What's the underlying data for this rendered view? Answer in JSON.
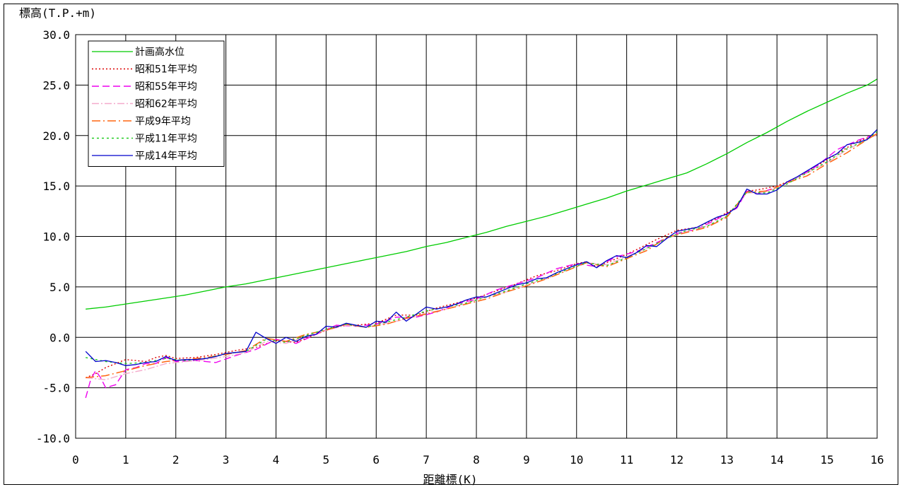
{
  "chart_data": {
    "type": "line",
    "ylabel": "標高(T.P.+m)",
    "xlabel": "距離標(K)",
    "xlim": [
      0,
      16
    ],
    "ylim": [
      -10,
      30
    ],
    "xticks": [
      "0",
      "1",
      "2",
      "3",
      "4",
      "5",
      "6",
      "7",
      "8",
      "9",
      "10",
      "11",
      "12",
      "13",
      "14",
      "15",
      "16"
    ],
    "yticks": [
      "30.0",
      "25.0",
      "20.0",
      "15.0",
      "10.0",
      "5.0",
      "0.0",
      "-5.0",
      "-10.0"
    ],
    "grid": true,
    "legend_position": "top-left",
    "series": [
      {
        "name": "計画高水位",
        "color": "#00cc00",
        "dash": "",
        "width": 1.3,
        "x": [
          0.2,
          0.6,
          1.0,
          1.4,
          1.8,
          2.2,
          2.6,
          3.0,
          3.4,
          3.8,
          4.2,
          4.6,
          5.0,
          5.4,
          5.8,
          6.2,
          6.6,
          7.0,
          7.4,
          7.8,
          8.2,
          8.6,
          9.0,
          9.4,
          9.8,
          10.2,
          10.6,
          11.0,
          11.4,
          11.8,
          12.2,
          12.6,
          13.0,
          13.4,
          13.8,
          14.2,
          14.6,
          15.0,
          15.4,
          15.8,
          16.0
        ],
        "y": [
          2.8,
          3.0,
          3.3,
          3.6,
          3.9,
          4.2,
          4.6,
          5.0,
          5.3,
          5.7,
          6.1,
          6.5,
          6.9,
          7.3,
          7.7,
          8.1,
          8.5,
          9.0,
          9.4,
          9.9,
          10.4,
          11.0,
          11.5,
          12.0,
          12.6,
          13.2,
          13.8,
          14.5,
          15.1,
          15.7,
          16.3,
          17.2,
          18.2,
          19.3,
          20.3,
          21.4,
          22.4,
          23.3,
          24.2,
          25.0,
          25.6
        ]
      },
      {
        "name": "昭和51年平均",
        "color": "#dd0000",
        "dash": "2,3",
        "width": 1.4,
        "x": [
          0.2,
          0.4,
          0.6,
          0.8,
          1.0,
          1.2,
          1.4,
          1.6,
          1.8,
          2.0,
          2.4,
          2.8,
          3.2,
          3.6,
          4.0,
          4.4,
          4.8,
          5.2,
          5.6,
          6.0,
          6.4,
          6.8,
          7.2,
          7.6,
          8.0,
          8.4,
          8.8,
          9.2,
          9.6,
          10.0,
          10.2,
          10.4,
          10.8,
          11.2,
          11.6,
          12.0,
          12.4,
          12.8,
          13.2,
          13.4,
          13.6,
          14.0,
          14.4,
          14.8,
          15.2,
          15.6,
          16.0
        ],
        "y": [
          -4.0,
          -3.6,
          -3.0,
          -2.6,
          -2.2,
          -2.3,
          -2.4,
          -2.0,
          -1.8,
          -2.1,
          -2.0,
          -1.7,
          -1.3,
          -1.0,
          -0.3,
          -0.5,
          0.3,
          1.1,
          1.2,
          1.4,
          2.2,
          2.2,
          2.9,
          3.4,
          3.9,
          4.6,
          5.3,
          6.1,
          6.6,
          7.3,
          7.5,
          7.0,
          7.8,
          8.7,
          9.7,
          10.6,
          10.9,
          11.8,
          12.9,
          14.5,
          14.6,
          15.0,
          15.8,
          17.0,
          18.2,
          19.4,
          20.1
        ]
      },
      {
        "name": "昭和55年平均",
        "color": "#ee00ee",
        "dash": "10,5",
        "width": 1.4,
        "x": [
          0.2,
          0.3,
          0.4,
          0.5,
          0.6,
          0.8,
          1.0,
          1.2,
          1.4,
          1.6,
          1.8,
          2.0,
          2.4,
          2.8,
          3.2,
          3.6,
          4.0,
          4.4,
          4.8,
          5.2,
          5.6,
          6.0,
          6.4,
          6.8,
          7.2,
          7.6,
          8.0,
          8.4,
          8.8,
          9.2,
          9.6,
          10.0,
          10.4,
          10.8,
          11.2,
          11.6,
          12.0,
          12.4,
          12.8,
          13.2,
          13.4,
          13.6,
          14.0,
          14.4,
          14.8,
          15.2,
          15.6,
          16.0
        ],
        "y": [
          -6.0,
          -4.2,
          -3.3,
          -4.0,
          -5.0,
          -4.7,
          -3.2,
          -3.0,
          -2.6,
          -2.6,
          -2.0,
          -2.4,
          -2.3,
          -2.5,
          -1.8,
          -1.2,
          -0.2,
          -0.6,
          0.3,
          1.2,
          1.1,
          1.3,
          2.0,
          2.0,
          2.5,
          3.3,
          3.8,
          4.7,
          5.3,
          5.9,
          6.8,
          7.3,
          7.0,
          8.0,
          8.5,
          9.4,
          10.3,
          10.7,
          11.7,
          12.8,
          14.5,
          14.2,
          14.9,
          15.8,
          17.0,
          18.6,
          19.5,
          20.2
        ]
      },
      {
        "name": "昭和62年平均",
        "color": "#f4aacc",
        "dash": "10,3,2,3",
        "width": 1.4,
        "x": [
          0.2,
          0.6,
          1.0,
          1.4,
          1.8,
          2.2,
          2.6,
          3.0,
          3.4,
          3.8,
          4.2,
          4.6,
          5.0,
          5.4,
          5.8,
          6.2,
          6.6,
          7.0,
          7.4,
          7.8,
          8.2,
          8.6,
          9.0,
          9.4,
          9.8,
          10.2,
          10.6,
          11.0,
          11.4,
          11.8,
          12.2,
          12.6,
          13.0,
          13.4,
          13.8,
          14.2,
          14.6,
          15.0,
          15.4,
          15.8,
          16.0
        ],
        "y": [
          -4.0,
          -4.2,
          -3.6,
          -3.2,
          -2.6,
          -2.4,
          -2.2,
          -1.9,
          -1.5,
          -0.4,
          -0.6,
          0.1,
          0.7,
          1.2,
          1.0,
          1.4,
          1.8,
          2.4,
          2.8,
          3.4,
          4.0,
          4.5,
          5.2,
          5.8,
          6.6,
          7.4,
          7.2,
          8.0,
          8.8,
          9.8,
          10.5,
          11.0,
          12.0,
          14.3,
          14.4,
          15.3,
          16.3,
          17.3,
          18.6,
          19.6,
          20.1
        ]
      },
      {
        "name": "平成9年平均",
        "color": "#ff6611",
        "dash": "12,4,2,4",
        "width": 1.5,
        "x": [
          0.2,
          0.6,
          1.0,
          1.4,
          1.8,
          2.2,
          2.6,
          3.0,
          3.4,
          3.8,
          4.2,
          4.6,
          5.0,
          5.4,
          5.8,
          6.2,
          6.6,
          7.0,
          7.4,
          7.8,
          8.2,
          8.6,
          9.0,
          9.4,
          9.8,
          10.2,
          10.6,
          11.0,
          11.4,
          11.8,
          12.2,
          12.6,
          13.0,
          13.4,
          13.8,
          14.2,
          14.6,
          15.0,
          15.4,
          15.8,
          16.0
        ],
        "y": [
          -4.0,
          -3.8,
          -3.3,
          -2.8,
          -2.4,
          -2.2,
          -2.0,
          -1.7,
          -1.3,
          -0.1,
          -0.4,
          0.3,
          0.7,
          1.3,
          1.0,
          1.3,
          1.9,
          2.3,
          2.8,
          3.3,
          3.8,
          4.5,
          5.1,
          5.8,
          6.6,
          7.4,
          7.0,
          7.8,
          8.6,
          9.9,
          10.4,
          10.9,
          11.9,
          14.4,
          14.5,
          15.3,
          16.0,
          17.2,
          18.3,
          19.6,
          20.2
        ]
      },
      {
        "name": "平成11年平均",
        "color": "#22cc22",
        "dash": "3,4",
        "width": 1.4,
        "x": [
          0.2,
          0.6,
          1.0,
          1.4,
          1.8,
          2.2,
          2.6,
          3.0,
          3.4,
          3.8,
          4.2,
          4.6,
          5.0,
          5.4,
          5.8,
          6.2,
          6.6,
          7.0,
          7.4,
          7.8,
          8.2,
          8.6,
          9.0,
          9.4,
          9.8,
          10.2,
          10.6,
          11.0,
          11.4,
          11.8,
          12.2,
          12.6,
          13.0,
          13.4,
          13.8,
          14.2,
          14.6,
          15.0,
          15.4,
          15.8,
          16.0
        ],
        "y": [
          -2.0,
          -2.4,
          -2.6,
          -2.5,
          -2.1,
          -2.3,
          -2.1,
          -1.6,
          -1.4,
          -0.2,
          -0.5,
          0.2,
          0.8,
          1.3,
          1.0,
          1.5,
          2.0,
          2.6,
          3.0,
          3.4,
          4.0,
          4.6,
          5.3,
          5.9,
          6.7,
          7.4,
          7.1,
          7.9,
          8.8,
          9.8,
          10.6,
          11.0,
          12.0,
          14.4,
          14.3,
          15.2,
          16.3,
          17.4,
          18.7,
          19.6,
          20.4
        ]
      },
      {
        "name": "平成14年平均",
        "color": "#0000cc",
        "dash": "",
        "width": 1.3,
        "x": [
          0.2,
          0.4,
          0.6,
          0.8,
          1.0,
          1.2,
          1.4,
          1.6,
          1.8,
          2.0,
          2.2,
          2.4,
          2.6,
          2.8,
          3.0,
          3.2,
          3.4,
          3.6,
          3.8,
          4.0,
          4.2,
          4.4,
          4.6,
          4.8,
          5.0,
          5.2,
          5.4,
          5.6,
          5.8,
          6.0,
          6.2,
          6.4,
          6.6,
          6.8,
          7.0,
          7.2,
          7.4,
          7.6,
          7.8,
          8.0,
          8.2,
          8.4,
          8.6,
          8.8,
          9.0,
          9.2,
          9.4,
          9.6,
          9.8,
          10.0,
          10.2,
          10.4,
          10.6,
          10.8,
          11.0,
          11.2,
          11.4,
          11.6,
          11.8,
          12.0,
          12.2,
          12.4,
          12.6,
          12.8,
          13.0,
          13.2,
          13.4,
          13.6,
          13.8,
          14.0,
          14.2,
          14.4,
          14.6,
          14.8,
          15.0,
          15.2,
          15.4,
          15.6,
          15.8,
          16.0
        ],
        "y": [
          -1.4,
          -2.4,
          -2.3,
          -2.5,
          -2.8,
          -2.7,
          -2.5,
          -2.4,
          -1.9,
          -2.3,
          -2.2,
          -2.2,
          -2.1,
          -1.9,
          -1.6,
          -1.5,
          -1.4,
          0.5,
          -0.1,
          -0.6,
          0.0,
          -0.4,
          0.1,
          0.3,
          1.1,
          1.0,
          1.4,
          1.2,
          1.0,
          1.6,
          1.5,
          2.5,
          1.6,
          2.3,
          3.0,
          2.8,
          3.0,
          3.3,
          3.7,
          4.0,
          4.0,
          4.4,
          4.8,
          5.2,
          5.4,
          5.8,
          5.9,
          6.4,
          6.8,
          7.2,
          7.5,
          6.9,
          7.6,
          8.1,
          7.9,
          8.4,
          9.1,
          9.0,
          9.8,
          10.5,
          10.7,
          10.9,
          11.4,
          11.9,
          12.2,
          12.9,
          14.7,
          14.2,
          14.2,
          14.6,
          15.4,
          15.9,
          16.5,
          17.1,
          17.7,
          18.2,
          19.1,
          19.3,
          19.6,
          20.6
        ]
      }
    ]
  }
}
